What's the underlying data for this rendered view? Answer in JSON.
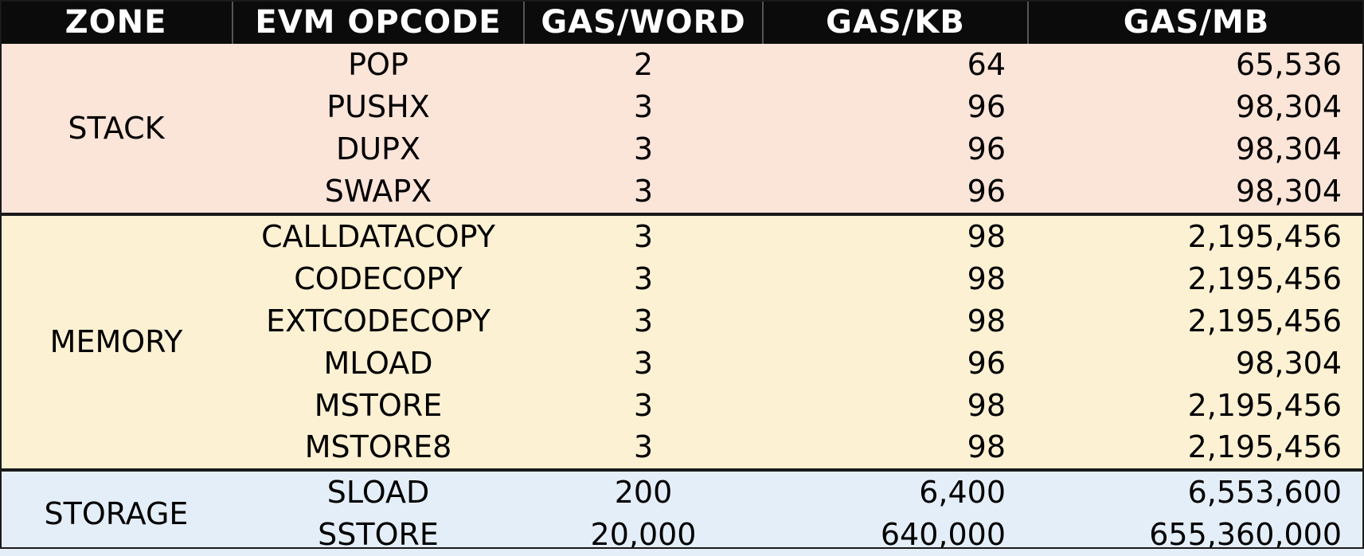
{
  "headers": [
    "ZONE",
    "EVM OPCODE",
    "GAS/WORD",
    "GAS/KB",
    "GAS/MB"
  ],
  "zones": [
    {
      "name": "STACK",
      "color": "#fbe4d8",
      "rows": [
        {
          "opcode": "POP",
          "word": "2",
          "kb": "64",
          "mb": "65,536"
        },
        {
          "opcode": "PUSHX",
          "word": "3",
          "kb": "96",
          "mb": "98,304"
        },
        {
          "opcode": "DUPX",
          "word": "3",
          "kb": "96",
          "mb": "98,304"
        },
        {
          "opcode": "SWAPX",
          "word": "3",
          "kb": "96",
          "mb": "98,304"
        }
      ]
    },
    {
      "name": "MEMORY",
      "color": "#fdf1d3",
      "rows": [
        {
          "opcode": "CALLDATACOPY",
          "word": "3",
          "kb": "98",
          "mb": "2,195,456"
        },
        {
          "opcode": "CODECOPY",
          "word": "3",
          "kb": "98",
          "mb": "2,195,456"
        },
        {
          "opcode": "EXTCODECOPY",
          "word": "3",
          "kb": "98",
          "mb": "2,195,456"
        },
        {
          "opcode": "MLOAD",
          "word": "3",
          "kb": "96",
          "mb": "98,304"
        },
        {
          "opcode": "MSTORE",
          "word": "3",
          "kb": "98",
          "mb": "2,195,456"
        },
        {
          "opcode": "MSTORE8",
          "word": "3",
          "kb": "98",
          "mb": "2,195,456"
        }
      ]
    },
    {
      "name": "STORAGE",
      "color": "#e4eef8",
      "rows": [
        {
          "opcode": "SLOAD",
          "word": "200",
          "kb": "6,400",
          "mb": "6,553,600"
        },
        {
          "opcode": "SSTORE",
          "word": "20,000",
          "kb": "640,000",
          "mb": "655,360,000"
        }
      ]
    }
  ],
  "header_color": "#0b0b0b"
}
